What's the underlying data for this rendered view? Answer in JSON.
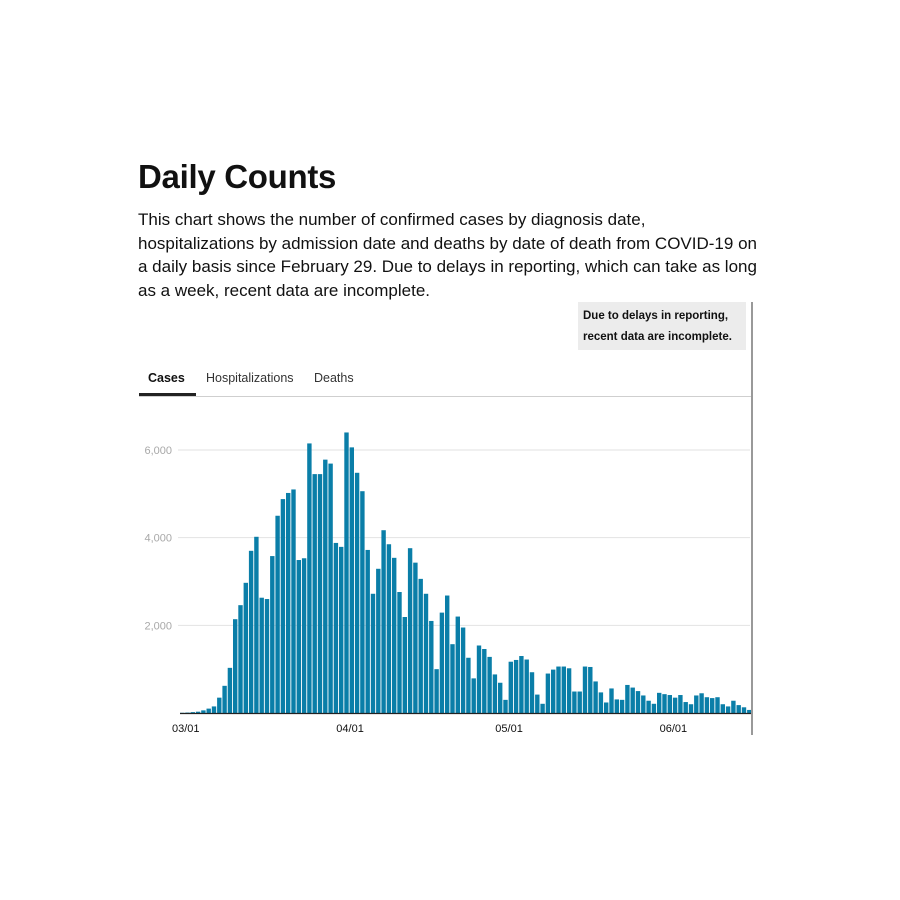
{
  "header": {
    "title": "Daily Counts",
    "description": "This chart shows the number of confirmed cases by diagnosis date, hospitalizations by admission date and deaths by date of death from COVID-19 on a daily basis since February 29. Due to delays in reporting, which can take as long as a week, recent data are incomplete."
  },
  "note": {
    "line1": "Due to delays in reporting,",
    "line2": "recent data are incomplete."
  },
  "tabs": [
    {
      "label": "Cases",
      "active": true
    },
    {
      "label": "Hospitalizations",
      "active": false
    },
    {
      "label": "Deaths",
      "active": false
    }
  ],
  "colors": {
    "bar": "#0a7ea8",
    "grid": "#e2e2e2",
    "axis_tick": "#a8a8a8",
    "note_bg": "#ececec"
  },
  "chart_data": {
    "type": "bar",
    "title": "",
    "xlabel": "",
    "ylabel": "",
    "ylim": [
      0,
      7000
    ],
    "x_start": "03/01",
    "grid": "horizontal",
    "yticks": [
      {
        "value": 2000,
        "label": "2,000"
      },
      {
        "value": 4000,
        "label": "4,000"
      },
      {
        "value": 6000,
        "label": "6,000"
      }
    ],
    "xticks": [
      {
        "index": 0,
        "label": "03/01"
      },
      {
        "index": 31,
        "label": "04/01"
      },
      {
        "index": 61,
        "label": "05/01"
      },
      {
        "index": 92,
        "label": "06/01"
      }
    ],
    "values": [
      5,
      10,
      20,
      30,
      60,
      100,
      150,
      350,
      620,
      1030,
      2140,
      2460,
      2970,
      3700,
      4020,
      2630,
      2600,
      3580,
      4500,
      4880,
      5020,
      5100,
      3490,
      3530,
      6150,
      5450,
      5450,
      5780,
      5690,
      3880,
      3790,
      6400,
      6060,
      5480,
      5060,
      3720,
      2720,
      3290,
      4170,
      3850,
      3540,
      2760,
      2190,
      3760,
      3430,
      3060,
      2720,
      2100,
      1000,
      2290,
      2680,
      1570,
      2200,
      1950,
      1260,
      790,
      1540,
      1460,
      1280,
      880,
      690,
      300,
      1170,
      1210,
      1300,
      1220,
      930,
      420,
      210,
      900,
      990,
      1060,
      1060,
      1020,
      490,
      490,
      1060,
      1050,
      720,
      470,
      240,
      560,
      310,
      300,
      640,
      580,
      500,
      400,
      280,
      210,
      460,
      430,
      410,
      350,
      410,
      250,
      200,
      400,
      450,
      360,
      340,
      360,
      200,
      150,
      280,
      180,
      130,
      70
    ]
  }
}
